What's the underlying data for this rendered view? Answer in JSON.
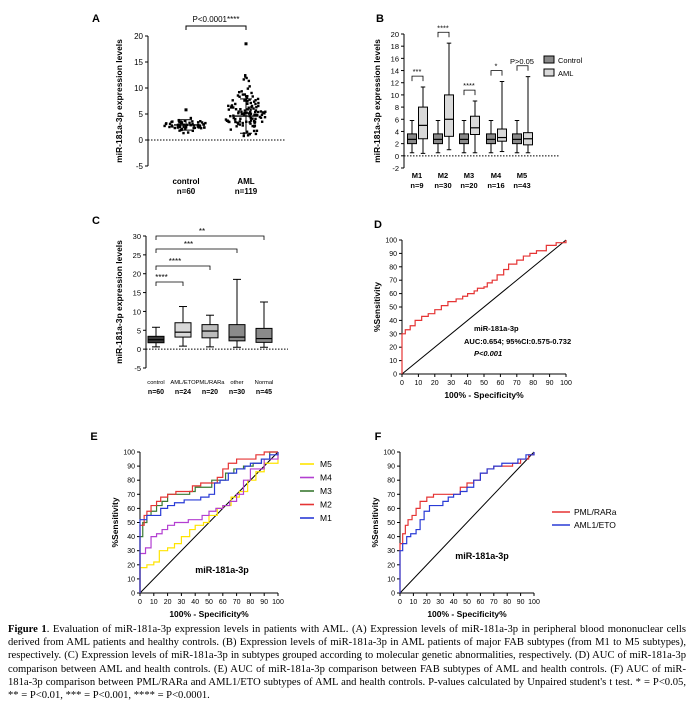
{
  "figure": {
    "caption_label": "Figure 1",
    "caption_text": ". Evaluation of miR-181a-3p expression levels in patients with AML. (A) Expression levels of miR-181a-3p in peripheral blood mononuclear cells derived from AML patients and healthy controls. (B) Expression levels of miR-181a-3p in AML patients of major FAB subtypes (from M1 to M5 subtypes), respectively. (C) Expression levels of miR-181a-3p in subtypes grouped according to molecular genetic abnormalities, respectively. (D) AUC of miR-181a-3p comparison between AML and health controls. (E) AUC of miR-181a-3p comparison between FAB subtypes of AML and health controls. (F) AUC of miR-181a-3p comparison between PML/RARa and AML1/ETO subtypes of AML and health controls. P-values calculated by Unpaired student's t test. * = P<0.05, ** = P<0.01, *** = P<0.001, **** = P<0.0001."
  },
  "chart_data": [
    {
      "panel": "A",
      "type": "scatter",
      "ylabel": "miR-181a-3p expression levels",
      "ylim": [
        -5,
        20
      ],
      "yticks": [
        -5,
        0,
        5,
        10,
        15,
        20
      ],
      "categories": [
        "control\nn=60",
        "AML\nn=119"
      ],
      "groups": [
        {
          "name": "control",
          "n": 60,
          "mean": 2.9,
          "sd": 1.0,
          "min": 0.6,
          "max": 5.8
        },
        {
          "name": "AML",
          "n": 119,
          "mean": 4.6,
          "sd": 3.3,
          "min": 0.1,
          "max": 18.5
        }
      ],
      "annotation": "P<0.0001****"
    },
    {
      "panel": "B",
      "type": "box",
      "ylabel": "miR-181a-3p expression levels",
      "ylim": [
        -2,
        20
      ],
      "yticks": [
        -2,
        0,
        2,
        4,
        6,
        8,
        10,
        12,
        14,
        16,
        18,
        20
      ],
      "categories": [
        "M1\nn=9",
        "M2\nn=30",
        "M3\nn=20",
        "M4\nn=16",
        "M5\nn=43"
      ],
      "legend": [
        "Control",
        "AML"
      ],
      "series": [
        {
          "name": "Control",
          "boxes": [
            [
              0.5,
              2,
              2.7,
              3.6,
              5.8
            ],
            [
              0.5,
              2,
              2.7,
              3.6,
              5.8
            ],
            [
              0.5,
              2,
              2.7,
              3.6,
              5.8
            ],
            [
              0.5,
              2,
              2.7,
              3.6,
              5.8
            ],
            [
              0.5,
              2,
              2.7,
              3.6,
              5.8
            ]
          ]
        },
        {
          "name": "AML",
          "boxes": [
            [
              0.4,
              2.8,
              5,
              8,
              11.3
            ],
            [
              1,
              3.2,
              6,
              10,
              18.5
            ],
            [
              0.5,
              3.5,
              4.6,
              6.5,
              9
            ],
            [
              0.7,
              2.4,
              3,
              4.4,
              12.2
            ],
            [
              0.5,
              1.8,
              2.8,
              3.8,
              13
            ]
          ]
        }
      ],
      "annotations": [
        "***",
        "****",
        "****",
        "*",
        "P>0.05"
      ]
    },
    {
      "panel": "C",
      "type": "box",
      "ylabel": "miR-181a-3p expression levels",
      "ylim": [
        -5,
        30
      ],
      "yticks": [
        -5,
        0,
        5,
        10,
        15,
        20,
        25,
        30
      ],
      "categories": [
        "control\nn=60",
        "AML/ETO\nn=24",
        "PML/RARa\nn=20",
        "other\nn=30",
        "Normal\nn=45"
      ],
      "boxes": [
        [
          0.6,
          1.7,
          2.5,
          3.4,
          5.8
        ],
        [
          0.8,
          3.2,
          4.5,
          7,
          11.3
        ],
        [
          0.6,
          3,
          4.8,
          6.5,
          9
        ],
        [
          0.5,
          2.2,
          3.2,
          6.5,
          18.5
        ],
        [
          0.5,
          1.8,
          2.8,
          5.5,
          12.5
        ]
      ],
      "annotations": [
        "****",
        "****",
        "***",
        "**"
      ]
    },
    {
      "panel": "D",
      "type": "line",
      "xlabel": "100% - Specificity%",
      "ylabel": "%Sensitivity",
      "xlim": [
        0,
        100
      ],
      "ylim": [
        0,
        100
      ],
      "ticks": [
        0,
        10,
        20,
        30,
        40,
        50,
        60,
        70,
        80,
        90,
        100
      ],
      "series": [
        {
          "name": "miR-181a-3p",
          "points": [
            [
              0,
              0
            ],
            [
              0,
              30
            ],
            [
              2,
              33
            ],
            [
              5,
              36
            ],
            [
              8,
              40
            ],
            [
              12,
              43
            ],
            [
              16,
              45
            ],
            [
              20,
              48
            ],
            [
              24,
              51
            ],
            [
              28,
              54
            ],
            [
              33,
              56
            ],
            [
              37,
              58
            ],
            [
              40,
              60
            ],
            [
              44,
              62
            ],
            [
              46,
              64
            ],
            [
              50,
              65
            ],
            [
              52,
              68
            ],
            [
              55,
              70
            ],
            [
              58,
              74
            ],
            [
              62,
              78
            ],
            [
              65,
              82
            ],
            [
              70,
              85
            ],
            [
              74,
              88
            ],
            [
              78,
              90
            ],
            [
              82,
              92
            ],
            [
              88,
              96
            ],
            [
              94,
              98
            ],
            [
              100,
              100
            ]
          ]
        }
      ],
      "text": [
        "miR-181a-3p",
        "AUC:0.654; 95%CI:0.575-0.732",
        "P<0.001"
      ]
    },
    {
      "panel": "E",
      "type": "line",
      "xlabel": "100% - Specificity%",
      "ylabel": "%Sensitivity",
      "xlim": [
        0,
        100
      ],
      "ylim": [
        0,
        100
      ],
      "ticks": [
        0,
        10,
        20,
        30,
        40,
        50,
        60,
        70,
        80,
        90,
        100
      ],
      "legend": [
        "M5",
        "M4",
        "M3",
        "M2",
        "M1"
      ],
      "colors": {
        "M5": "#ffe400",
        "M4": "#b33fd1",
        "M3": "#3a7a32",
        "M2": "#e53434",
        "M1": "#2a3bd6"
      },
      "series": [
        {
          "name": "M5",
          "points": [
            [
              0,
              0
            ],
            [
              0,
              18
            ],
            [
              5,
              20
            ],
            [
              10,
              22
            ],
            [
              14,
              30
            ],
            [
              20,
              32
            ],
            [
              25,
              35
            ],
            [
              30,
              40
            ],
            [
              36,
              45
            ],
            [
              40,
              48
            ],
            [
              46,
              50
            ],
            [
              50,
              55
            ],
            [
              56,
              60
            ],
            [
              60,
              62
            ],
            [
              66,
              68
            ],
            [
              72,
              72
            ],
            [
              78,
              80
            ],
            [
              84,
              86
            ],
            [
              90,
              92
            ],
            [
              100,
              100
            ]
          ]
        },
        {
          "name": "M4",
          "points": [
            [
              0,
              0
            ],
            [
              0,
              28
            ],
            [
              4,
              32
            ],
            [
              8,
              40
            ],
            [
              12,
              42
            ],
            [
              16,
              45
            ],
            [
              20,
              48
            ],
            [
              25,
              50
            ],
            [
              30,
              50
            ],
            [
              35,
              52
            ],
            [
              40,
              52
            ],
            [
              45,
              55
            ],
            [
              50,
              58
            ],
            [
              55,
              60
            ],
            [
              60,
              62
            ],
            [
              65,
              65
            ],
            [
              70,
              70
            ],
            [
              75,
              80
            ],
            [
              80,
              88
            ],
            [
              90,
              95
            ],
            [
              100,
              100
            ]
          ]
        },
        {
          "name": "M3",
          "points": [
            [
              0,
              0
            ],
            [
              0,
              40
            ],
            [
              2,
              50
            ],
            [
              5,
              55
            ],
            [
              8,
              58
            ],
            [
              12,
              62
            ],
            [
              16,
              65
            ],
            [
              20,
              70
            ],
            [
              28,
              70
            ],
            [
              36,
              72
            ],
            [
              40,
              75
            ],
            [
              48,
              75
            ],
            [
              52,
              80
            ],
            [
              58,
              80
            ],
            [
              62,
              85
            ],
            [
              68,
              88
            ],
            [
              75,
              90
            ],
            [
              82,
              92
            ],
            [
              88,
              95
            ],
            [
              94,
              100
            ],
            [
              100,
              100
            ]
          ]
        },
        {
          "name": "M2",
          "points": [
            [
              0,
              0
            ],
            [
              0,
              48
            ],
            [
              3,
              55
            ],
            [
              5,
              58
            ],
            [
              8,
              62
            ],
            [
              12,
              65
            ],
            [
              15,
              68
            ],
            [
              20,
              70
            ],
            [
              26,
              72
            ],
            [
              32,
              72
            ],
            [
              38,
              76
            ],
            [
              44,
              78
            ],
            [
              50,
              78
            ],
            [
              56,
              82
            ],
            [
              60,
              88
            ],
            [
              64,
              92
            ],
            [
              70,
              95
            ],
            [
              78,
              95
            ],
            [
              84,
              98
            ],
            [
              90,
              100
            ],
            [
              100,
              100
            ]
          ]
        },
        {
          "name": "M1",
          "points": [
            [
              0,
              0
            ],
            [
              0,
              52
            ],
            [
              5,
              55
            ],
            [
              10,
              55
            ],
            [
              15,
              60
            ],
            [
              20,
              62
            ],
            [
              25,
              64
            ],
            [
              32,
              66
            ],
            [
              38,
              66
            ],
            [
              44,
              68
            ],
            [
              50,
              70
            ],
            [
              54,
              78
            ],
            [
              58,
              80
            ],
            [
              64,
              85
            ],
            [
              70,
              88
            ],
            [
              76,
              90
            ],
            [
              80,
              92
            ],
            [
              88,
              95
            ],
            [
              94,
              98
            ],
            [
              100,
              100
            ]
          ]
        }
      ],
      "text": [
        "miR-181a-3p"
      ]
    },
    {
      "panel": "F",
      "type": "line",
      "xlabel": "100% - Specificity%",
      "ylabel": "%Sensitivity",
      "xlim": [
        0,
        100
      ],
      "ylim": [
        0,
        100
      ],
      "ticks": [
        0,
        10,
        20,
        30,
        40,
        50,
        60,
        70,
        80,
        90,
        100
      ],
      "legend": [
        "PML/RARa",
        "AML1/ETO"
      ],
      "colors": {
        "PML/RARa": "#e53434",
        "AML1/ETO": "#2a3bd6"
      },
      "series": [
        {
          "name": "PML/RARa",
          "points": [
            [
              0,
              0
            ],
            [
              0,
              35
            ],
            [
              2,
              42
            ],
            [
              4,
              48
            ],
            [
              6,
              52
            ],
            [
              9,
              55
            ],
            [
              12,
              60
            ],
            [
              15,
              65
            ],
            [
              20,
              68
            ],
            [
              25,
              70
            ],
            [
              30,
              70
            ],
            [
              35,
              70
            ],
            [
              40,
              70
            ],
            [
              45,
              75
            ],
            [
              50,
              78
            ],
            [
              55,
              80
            ],
            [
              60,
              85
            ],
            [
              65,
              88
            ],
            [
              70,
              90
            ],
            [
              78,
              90
            ],
            [
              84,
              92
            ],
            [
              90,
              95
            ],
            [
              96,
              98
            ],
            [
              100,
              100
            ]
          ]
        },
        {
          "name": "AML1/ETO",
          "points": [
            [
              0,
              0
            ],
            [
              0,
              30
            ],
            [
              2,
              35
            ],
            [
              5,
              40
            ],
            [
              8,
              42
            ],
            [
              12,
              45
            ],
            [
              15,
              52
            ],
            [
              18,
              58
            ],
            [
              22,
              62
            ],
            [
              28,
              62
            ],
            [
              32,
              65
            ],
            [
              36,
              68
            ],
            [
              40,
              70
            ],
            [
              45,
              72
            ],
            [
              50,
              75
            ],
            [
              55,
              80
            ],
            [
              60,
              85
            ],
            [
              65,
              88
            ],
            [
              70,
              90
            ],
            [
              76,
              92
            ],
            [
              82,
              92
            ],
            [
              88,
              95
            ],
            [
              94,
              98
            ],
            [
              100,
              100
            ]
          ]
        }
      ],
      "text": [
        "miR-181a-3p"
      ]
    }
  ]
}
